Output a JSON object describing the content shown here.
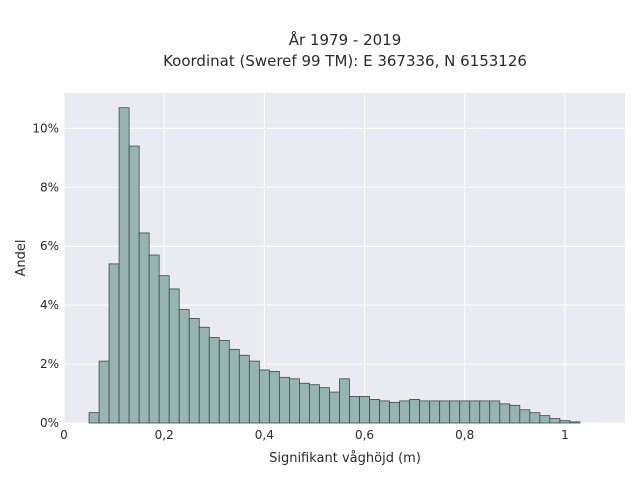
{
  "chart_data": {
    "type": "bar",
    "title": [
      "År 1979 - 2019",
      "Koordinat (Sweref 99 TM): E 367336, N 6153126"
    ],
    "xlabel": "Signifikant våghöjd (m)",
    "ylabel": "Andel",
    "xlim": [
      0,
      1.12
    ],
    "ylim": [
      0,
      0.112
    ],
    "x_ticks": [
      0,
      0.2,
      0.4,
      0.6,
      0.8,
      1.0
    ],
    "x_tick_labels": [
      "0",
      "0,2",
      "0,4",
      "0,6",
      "0,8",
      "1"
    ],
    "y_ticks": [
      0,
      0.02,
      0.04,
      0.06,
      0.08,
      0.1
    ],
    "y_tick_labels": [
      "0%",
      "2%",
      "4%",
      "6%",
      "8%",
      "10%"
    ],
    "bin_start": 0.05,
    "bin_width": 0.02,
    "values": [
      0.0035,
      0.021,
      0.054,
      0.107,
      0.094,
      0.0645,
      0.057,
      0.05,
      0.0455,
      0.0385,
      0.0355,
      0.0325,
      0.029,
      0.028,
      0.025,
      0.023,
      0.021,
      0.018,
      0.0175,
      0.0155,
      0.015,
      0.0135,
      0.013,
      0.012,
      0.0105,
      0.015,
      0.009,
      0.009,
      0.008,
      0.0075,
      0.007,
      0.0075,
      0.008,
      0.0075,
      0.0075,
      0.0075,
      0.0075,
      0.0075,
      0.0075,
      0.0075,
      0.0075,
      0.0065,
      0.006,
      0.0045,
      0.0035,
      0.0025,
      0.0015,
      0.0008,
      0.0004
    ],
    "grid": true,
    "colors": {
      "bar_fill": "#98b4b2",
      "bar_edge": "#3a4a48",
      "plot_bg": "#eaeaf2",
      "grid": "#ffffff"
    }
  }
}
